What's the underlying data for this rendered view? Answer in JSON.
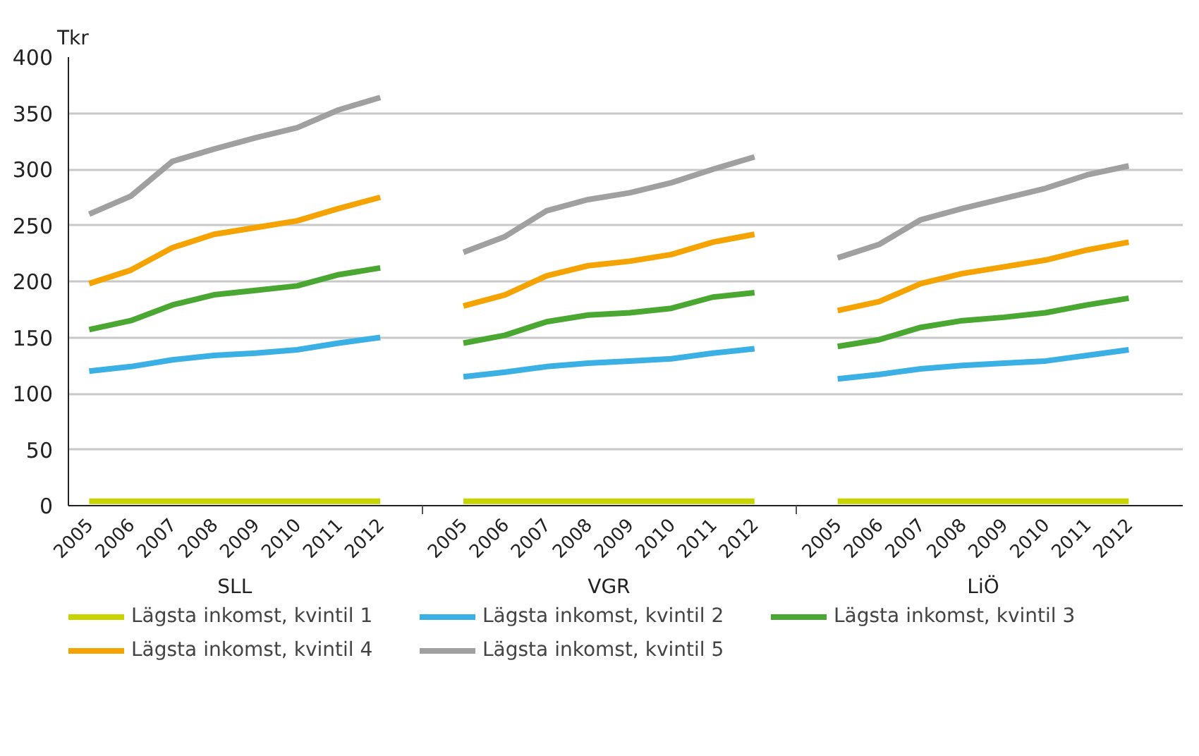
{
  "chart_data": {
    "type": "line",
    "ylabel": "Tkr",
    "categories": [
      "2005",
      "2006",
      "2007",
      "2008",
      "2009",
      "2010",
      "2011",
      "2012",
      null,
      "2005",
      "2006",
      "2007",
      "2008",
      "2009",
      "2010",
      "2011",
      "2012",
      null,
      "2005",
      "2006",
      "2007",
      "2008",
      "2009",
      "2010",
      "2011",
      "2012"
    ],
    "annotations": [
      "SLL",
      "VGR",
      "LiÖ"
    ],
    "ylim": [
      0,
      400
    ],
    "yticks": [
      0,
      50,
      100,
      150,
      200,
      250,
      300,
      350,
      400
    ],
    "grid": "y",
    "legend": "bottom",
    "marker": "none",
    "line_style": "solid",
    "series": [
      {
        "name": "Lägsta inkomst, kvintil 1",
        "color": "#c8d400",
        "values": [
          4,
          4,
          4,
          4,
          4,
          4,
          4,
          4,
          null,
          4,
          4,
          4,
          4,
          4,
          4,
          4,
          4,
          null,
          4,
          4,
          4,
          4,
          4,
          4,
          4,
          4
        ]
      },
      {
        "name": "Lägsta inkomst, kvintil 2",
        "color": "#3bb0e5",
        "values": [
          120,
          124,
          130,
          134,
          136,
          139,
          145,
          150,
          null,
          115,
          119,
          124,
          127,
          129,
          131,
          136,
          140,
          null,
          113,
          117,
          122,
          125,
          127,
          129,
          134,
          139
        ]
      },
      {
        "name": "Lägsta inkomst, kvintil 3",
        "color": "#4aa832",
        "values": [
          157,
          165,
          179,
          188,
          192,
          196,
          206,
          212,
          null,
          145,
          152,
          164,
          170,
          172,
          176,
          186,
          190,
          null,
          142,
          148,
          159,
          165,
          168,
          172,
          179,
          185
        ]
      },
      {
        "name": "Lägsta inkomst, kvintil 4",
        "color": "#f5a300",
        "values": [
          198,
          210,
          230,
          242,
          248,
          254,
          265,
          275,
          null,
          178,
          188,
          205,
          214,
          218,
          224,
          235,
          242,
          null,
          174,
          182,
          198,
          207,
          213,
          219,
          228,
          235
        ]
      },
      {
        "name": "Lägsta inkomst, kvintil 5",
        "color": "#a0a0a0",
        "values": [
          260,
          276,
          307,
          318,
          328,
          337,
          353,
          364,
          null,
          226,
          240,
          263,
          273,
          279,
          288,
          300,
          311,
          null,
          221,
          233,
          255,
          265,
          274,
          283,
          295,
          303
        ]
      }
    ]
  }
}
